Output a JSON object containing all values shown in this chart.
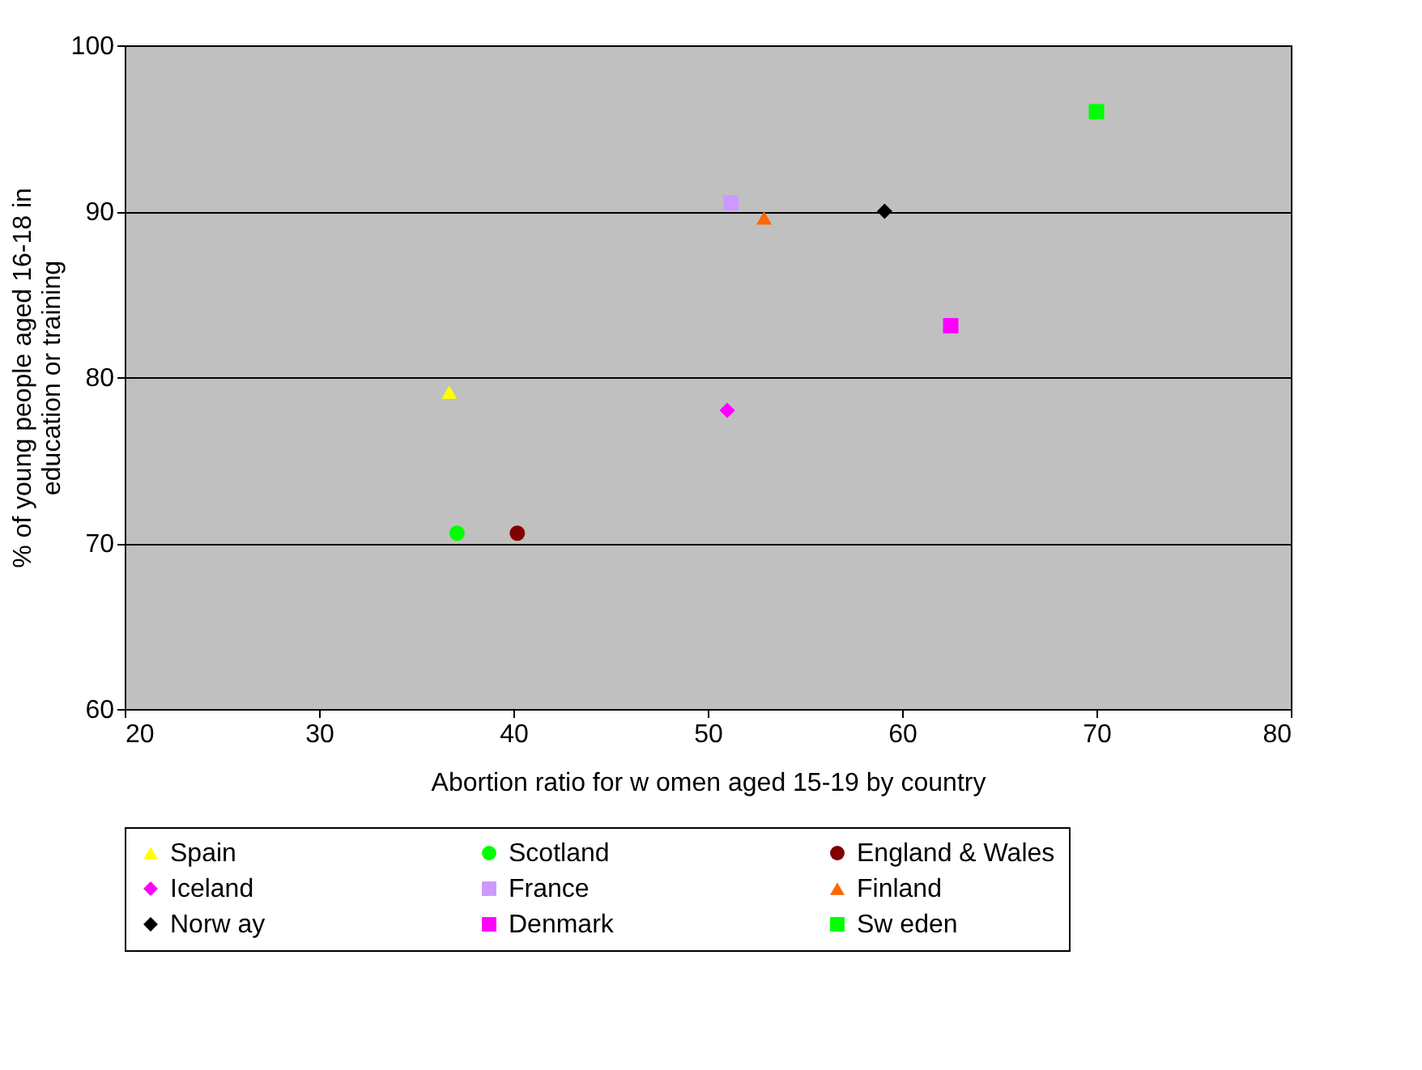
{
  "chart_data": {
    "type": "scatter",
    "xlabel": "Abortion ratio for w omen aged 15-19 by country",
    "ylabel": "% of young people aged 16-18 in education or training",
    "xlim": [
      20,
      80
    ],
    "xticks": [
      20,
      30,
      40,
      50,
      60,
      70,
      80
    ],
    "ylim": [
      60,
      100
    ],
    "yticks": [
      60,
      70,
      80,
      90,
      100
    ],
    "grid": "y",
    "legend": "bottom",
    "series": [
      {
        "name": "Spain",
        "color": "#ffff00",
        "marker": "triangle",
        "x": [
          36.7
        ],
        "values": [
          79.1
        ]
      },
      {
        "name": "Scotland",
        "color": "#00ff00",
        "marker": "circle",
        "x": [
          37.1
        ],
        "values": [
          70.6
        ]
      },
      {
        "name": "England & Wales",
        "color": "#800000",
        "marker": "circle",
        "x": [
          40.2
        ],
        "values": [
          70.6
        ]
      },
      {
        "name": "Iceland",
        "color": "#ff00ff",
        "marker": "diamond",
        "x": [
          51.0
        ],
        "values": [
          78.0
        ]
      },
      {
        "name": "France",
        "color": "#cc99ff",
        "marker": "square",
        "x": [
          51.2
        ],
        "values": [
          90.5
        ]
      },
      {
        "name": "Finland",
        "color": "#ff6600",
        "marker": "triangle",
        "x": [
          52.9
        ],
        "values": [
          89.6
        ]
      },
      {
        "name": "Norw ay",
        "color": "#000000",
        "marker": "diamond",
        "x": [
          59.1
        ],
        "values": [
          90.0
        ]
      },
      {
        "name": "Denmark",
        "color": "#ff00ff",
        "marker": "square",
        "x": [
          62.5
        ],
        "values": [
          83.1
        ]
      },
      {
        "name": "Sw eden",
        "color": "#00ff00",
        "marker": "square",
        "x": [
          70.0
        ],
        "values": [
          96.0
        ]
      }
    ]
  }
}
